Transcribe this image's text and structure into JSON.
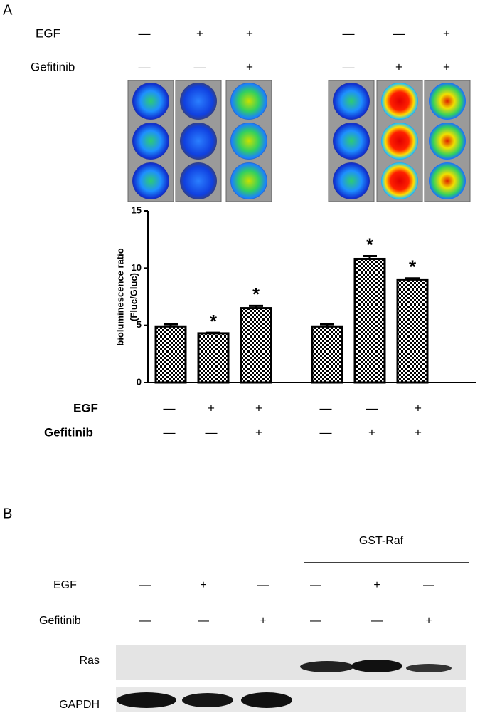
{
  "panel_a": {
    "label": "A",
    "treatment_rows_top": [
      {
        "name": "EGF",
        "signs": [
          "—",
          "+",
          "+",
          "—",
          "—",
          "+"
        ]
      },
      {
        "name": "Gefitinib",
        "signs": [
          "—",
          "—",
          "+",
          "—",
          "+",
          "+"
        ]
      }
    ],
    "treatment_rows_bottom": [
      {
        "name": "EGF",
        "signs": [
          "—",
          "+",
          "+",
          "—",
          "—",
          "+"
        ]
      },
      {
        "name": "Gefitinib",
        "signs": [
          "—",
          "—",
          "+",
          "—",
          "+",
          "+"
        ]
      }
    ]
  },
  "chart_data": {
    "type": "bar",
    "ylabel": [
      "bioluminescence ratio",
      "(Fluc/Gluc)"
    ],
    "categories": [
      null,
      null,
      null,
      null,
      null,
      null
    ],
    "values": [
      4.9,
      4.3,
      6.5,
      4.9,
      10.8,
      9.0
    ],
    "errors": [
      0.2,
      0.05,
      0.2,
      0.2,
      0.25,
      0.1
    ],
    "significance": [
      null,
      "*",
      "*",
      null,
      "*",
      "*"
    ],
    "ylim": [
      0,
      15
    ],
    "yticks": [
      0,
      5,
      10,
      15
    ],
    "color": "#000000"
  },
  "panel_b": {
    "label": "B",
    "group_label": "GST-Raf",
    "treatment_rows": [
      {
        "name": "EGF",
        "signs": [
          "—",
          "+",
          "—",
          "—",
          "+",
          "—"
        ]
      },
      {
        "name": "Gefitinib",
        "signs": [
          "—",
          "—",
          "+",
          "—",
          "—",
          "+"
        ]
      }
    ],
    "blots": [
      "Ras",
      "GAPDH"
    ]
  }
}
